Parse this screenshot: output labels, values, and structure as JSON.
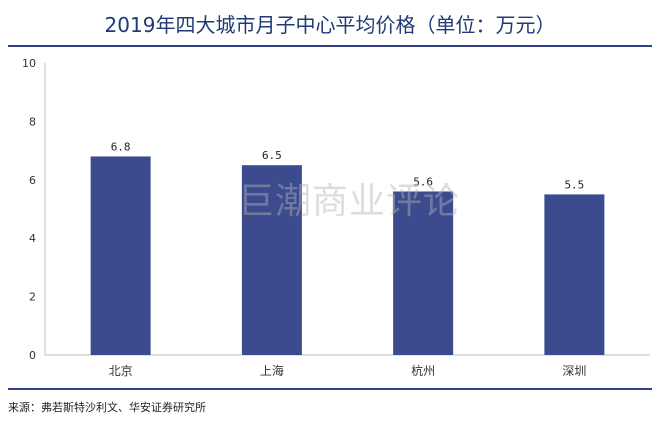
{
  "title": "2019年四大城市月子中心平均价格（单位：万元）",
  "watermark": "巨潮商业评论",
  "source": "来源：弗若斯特沙利文、华安证券研究所",
  "colors": {
    "bar": "#3b4b8d",
    "title": "#1f3a75",
    "rule": "#2f3f84"
  },
  "chart_data": {
    "type": "bar",
    "categories": [
      "北京",
      "上海",
      "杭州",
      "深圳"
    ],
    "values": [
      6.8,
      6.5,
      5.6,
      5.5
    ],
    "data_labels": [
      "6.8",
      "6.5",
      "5.6",
      "5.5"
    ],
    "yticks": [
      "0",
      "2",
      "4",
      "6",
      "8",
      "10"
    ],
    "ylim": [
      0,
      10
    ],
    "grid": false,
    "title": "2019年四大城市月子中心平均价格（单位：万元）",
    "xlabel": "",
    "ylabel": ""
  }
}
